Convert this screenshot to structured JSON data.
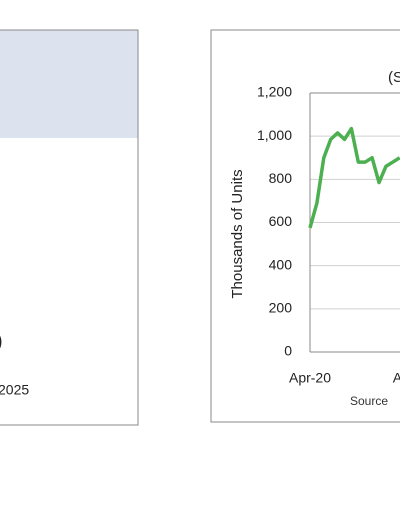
{
  "left_panel": {
    "fragment": ")",
    "date_fragment": "2025"
  },
  "chart_data": {
    "type": "line",
    "title": "(S",
    "y_label": "Thousands of Units",
    "source": "Source",
    "categories": [
      "Apr-20",
      null,
      null,
      null,
      null,
      null,
      null,
      null,
      null,
      null,
      null,
      null,
      "Ap",
      null
    ],
    "series": [
      {
        "name": null,
        "color": "#4caf50",
        "values": [
          575,
          690,
          900,
          985,
          1015,
          985,
          1035,
          880,
          880,
          900,
          785,
          860,
          880,
          900
        ]
      }
    ],
    "ylim": [
      0,
      1200
    ],
    "yticks": [
      0,
      200,
      400,
      600,
      800,
      {
        "value": 1000,
        "label": "1,000"
      },
      {
        "value": 1200,
        "label": "1,200"
      }
    ],
    "grid": true
  }
}
